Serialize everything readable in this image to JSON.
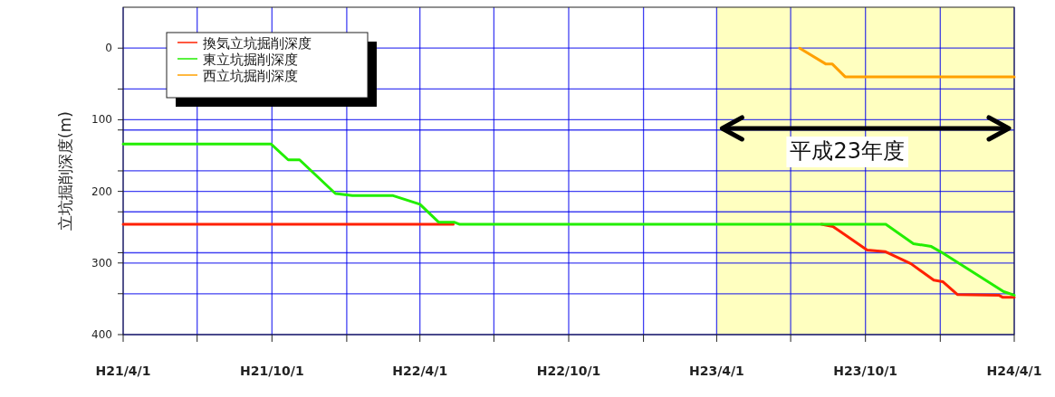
{
  "chart_data": {
    "type": "line",
    "ylabel": "立坑掘削深度(m)",
    "xlim": [
      "2009-04-01",
      "2012-04-01"
    ],
    "xticks": [
      {
        "value": "2009-04-01",
        "label": "H21/4/1"
      },
      {
        "value": "2009-07-01",
        "label": null
      },
      {
        "value": "2009-10-01",
        "label": "H21/10/1"
      },
      {
        "value": "2010-01-01",
        "label": null
      },
      {
        "value": "2010-04-01",
        "label": "H22/4/1"
      },
      {
        "value": "2010-07-01",
        "label": null
      },
      {
        "value": "2010-10-01",
        "label": "H22/10/1"
      },
      {
        "value": "2011-01-01",
        "label": null
      },
      {
        "value": "2011-04-01",
        "label": "H23/4/1"
      },
      {
        "value": "2011-07-01",
        "label": null
      },
      {
        "value": "2011-10-01",
        "label": "H23/10/1"
      },
      {
        "value": "2012-01-01",
        "label": null
      },
      {
        "value": "2012-04-01",
        "label": "H24/4/1"
      }
    ],
    "ylim": [
      400,
      -57.1
    ],
    "yticks": [
      0,
      {
        "value": 57.1,
        "label": null
      },
      100,
      {
        "value": 114.3,
        "label": null
      },
      {
        "value": 171.4,
        "label": null
      },
      200,
      {
        "value": 228.6,
        "label": null
      },
      {
        "value": 285.7,
        "label": null
      },
      300,
      {
        "value": 342.9,
        "label": null
      },
      400
    ],
    "grid": true,
    "legend": "top left",
    "bands": [
      {
        "axis": "x",
        "from": "2011-04-01",
        "to": "2012-04-01",
        "label": "平成23年度",
        "color": "#ffffc0"
      }
    ],
    "series": [
      {
        "name": "換気立坑掘削深度",
        "color": "#ff2000",
        "x": [
          "2009-04-01",
          "2010-05-12",
          null,
          "2011-08-08",
          "2011-08-22",
          "2011-10-03",
          "2011-10-25",
          "2011-11-26",
          "2011-12-24",
          "2012-01-04",
          "2012-01-22",
          "2012-03-13",
          "2012-03-18",
          "2012-04-01"
        ],
        "values": [
          246,
          246,
          null,
          246,
          249,
          282,
          284,
          301,
          324,
          326,
          344,
          345,
          348,
          348
        ]
      },
      {
        "name": "東立坑掘削深度",
        "color": "#22ee00",
        "x": [
          "2009-04-01",
          "2009-09-30",
          "2009-10-21",
          "2009-11-04",
          "2009-12-18",
          "2010-01-08",
          "2010-02-27",
          "2010-04-01",
          "2010-04-24",
          "2010-05-13",
          "2010-05-20",
          "2011-10-26",
          "2011-11-29",
          "2011-12-21",
          "2012-01-04",
          "2012-02-16",
          "2012-03-19",
          "2012-04-01"
        ],
        "values": [
          134,
          134,
          156,
          156,
          203,
          206,
          206,
          218,
          243,
          243,
          246,
          246,
          273,
          277,
          286,
          317,
          340,
          345
        ]
      },
      {
        "name": "西立坑掘削深度",
        "color": "#ffa000",
        "x": [
          "2011-07-12",
          "2011-08-13",
          "2011-08-21",
          "2011-09-06",
          "2012-04-01"
        ],
        "values": [
          0,
          22,
          22,
          40,
          40
        ]
      }
    ]
  }
}
